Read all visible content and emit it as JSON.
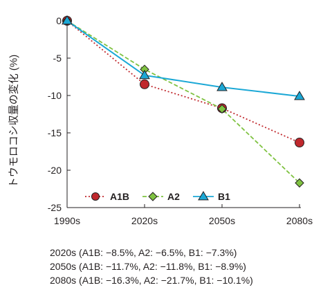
{
  "chart_data": {
    "type": "line",
    "categories": [
      "1990s",
      "2020s",
      "2050s",
      "2080s"
    ],
    "ylabel": "トウモロコシ収量の変化 (%)",
    "ylim": [
      -25,
      0
    ],
    "yticks": [
      0,
      -5,
      -10,
      -15,
      -20,
      -25
    ],
    "grid": false,
    "legend_position": "bottom-left",
    "series": [
      {
        "name": "A1B",
        "values": [
          0,
          -8.5,
          -11.7,
          -16.3
        ],
        "color": "#c0282d",
        "marker": "circle",
        "dash": "dotted"
      },
      {
        "name": "A2",
        "values": [
          0,
          -6.5,
          -11.8,
          -21.7
        ],
        "color": "#7fc241",
        "marker": "diamond",
        "dash": "dashed"
      },
      {
        "name": "B1",
        "values": [
          0,
          -7.3,
          -8.9,
          -10.1
        ],
        "color": "#1ba8d6",
        "marker": "triangle",
        "dash": "solid"
      }
    ]
  },
  "notes": [
    "2020s (A1B: −8.5%, A2: −6.5%, B1: −7.3%)",
    "2050s (A1B: −11.7%, A2: −11.8%, B1: −8.9%)",
    "2080s (A1B: −16.3%, A2: −21.7%, B1: −10.1%)"
  ]
}
